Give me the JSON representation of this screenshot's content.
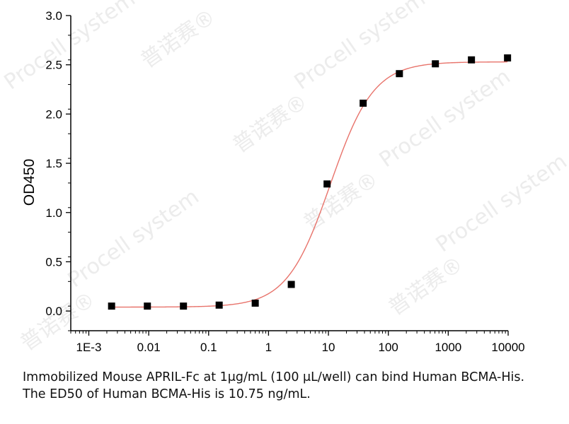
{
  "chart_data": {
    "type": "scatter",
    "ylabel": "OD450",
    "xlabel": "",
    "x_scale": "log",
    "xlim": [
      0.0005,
      10000
    ],
    "ylim": [
      -0.2,
      3.0
    ],
    "x_ticks": [
      {
        "value": 0.001,
        "label": "1E-3"
      },
      {
        "value": 0.01,
        "label": "0.01"
      },
      {
        "value": 0.1,
        "label": "0.1"
      },
      {
        "value": 1,
        "label": "1"
      },
      {
        "value": 10,
        "label": "10"
      },
      {
        "value": 100,
        "label": "100"
      },
      {
        "value": 1000,
        "label": "1000"
      },
      {
        "value": 10000,
        "label": "10000"
      }
    ],
    "y_ticks": [
      {
        "value": 0.0,
        "label": "0.0"
      },
      {
        "value": 0.5,
        "label": "0.5"
      },
      {
        "value": 1.0,
        "label": "1.0"
      },
      {
        "value": 1.5,
        "label": "1.5"
      },
      {
        "value": 2.0,
        "label": "2.0"
      },
      {
        "value": 2.5,
        "label": "2.5"
      },
      {
        "value": 3.0,
        "label": "3.0"
      }
    ],
    "series": [
      {
        "marker": "square",
        "color": "#000000",
        "x": [
          0.0024,
          0.0095,
          0.038,
          0.15,
          0.6,
          2.4,
          9.5,
          38,
          153,
          610,
          2440,
          9770
        ],
        "y": [
          0.05,
          0.05,
          0.05,
          0.06,
          0.08,
          0.27,
          1.29,
          2.11,
          2.41,
          2.51,
          2.55,
          2.57
        ]
      }
    ],
    "fit_curve": {
      "model": "4PL",
      "color": "#e8736b",
      "bottom": 0.04,
      "top": 2.53,
      "ec50": 10.75,
      "hill": 1.2
    },
    "grid": false
  },
  "caption": {
    "line1": "Immobilized Mouse APRIL-Fc at 1μg/mL (100 μL/well) can bind Human BCMA-His.",
    "line2": "The ED50 of Human BCMA-His is 10.75 ng/mL."
  },
  "watermark": {
    "brand": "Procell",
    "sub": "system",
    "cn": "普诺赛®"
  }
}
